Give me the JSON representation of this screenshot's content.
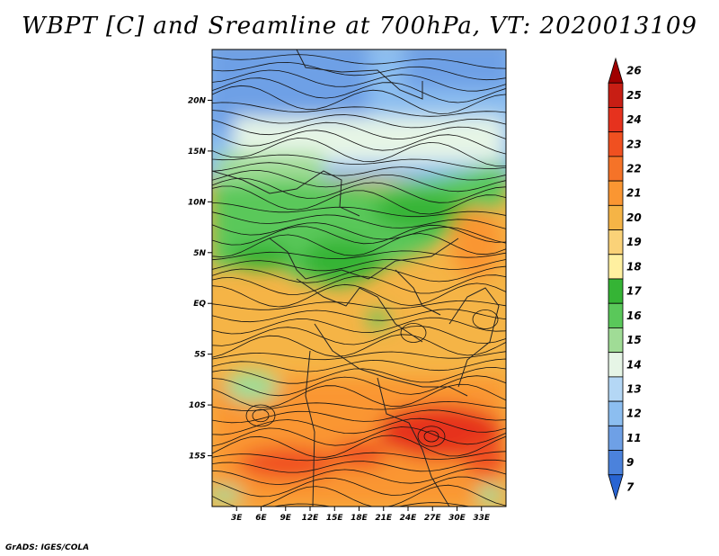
{
  "title": "WBPT [C] and Sreamline at 700hPa, VT: 2020013109",
  "footer": "GrADS: IGES/COLA",
  "map": {
    "lon_range": [
      0,
      36
    ],
    "lat_range": [
      -20,
      25
    ],
    "lat_ticks": [
      {
        "lat": 20,
        "label": "20N"
      },
      {
        "lat": 15,
        "label": "15N"
      },
      {
        "lat": 10,
        "label": "10N"
      },
      {
        "lat": 5,
        "label": "5N"
      },
      {
        "lat": 0,
        "label": "EQ"
      },
      {
        "lat": -5,
        "label": "5S"
      },
      {
        "lat": -10,
        "label": "10S"
      },
      {
        "lat": -15,
        "label": "15S"
      }
    ],
    "lon_ticks": [
      {
        "lon": 3,
        "label": "3E"
      },
      {
        "lon": 6,
        "label": "6E"
      },
      {
        "lon": 9,
        "label": "9E"
      },
      {
        "lon": 12,
        "label": "12E"
      },
      {
        "lon": 15,
        "label": "15E"
      },
      {
        "lon": 18,
        "label": "18E"
      },
      {
        "lon": 21,
        "label": "21E"
      },
      {
        "lon": 24,
        "label": "24E"
      },
      {
        "lon": 27,
        "label": "27E"
      },
      {
        "lon": 30,
        "label": "30E"
      },
      {
        "lon": 33,
        "label": "33E"
      }
    ]
  },
  "colorbar": {
    "labels": [
      "26",
      "25",
      "24",
      "23",
      "22",
      "21",
      "20",
      "19",
      "18",
      "17",
      "16",
      "15",
      "14",
      "13",
      "12",
      "11",
      "9",
      "7"
    ],
    "colors": [
      "#a00000",
      "#c81e14",
      "#e6321e",
      "#f05020",
      "#f57328",
      "#fa9632",
      "#f5b446",
      "#fad278",
      "#fff0a0",
      "#35b435",
      "#5ac85a",
      "#a0dc96",
      "#e6f5e6",
      "#b4d7f5",
      "#8cbef0",
      "#6ea0e6",
      "#4b82dc",
      "#2864d2"
    ]
  }
}
